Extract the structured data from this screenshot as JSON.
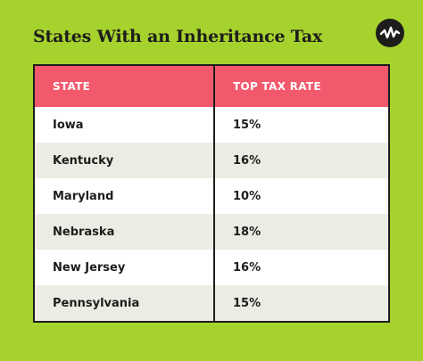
{
  "header": {
    "title": "States With an Inheritance Tax"
  },
  "table": {
    "columns": [
      "STATE",
      "TOP TAX RATE"
    ],
    "rows": [
      [
        "Iowa",
        "15%"
      ],
      [
        "Kentucky",
        "16%"
      ],
      [
        "Maryland",
        "10%"
      ],
      [
        "Nebraska",
        "18%"
      ],
      [
        "New Jersey",
        "16%"
      ],
      [
        "Pennsylvania",
        "15%"
      ]
    ]
  }
}
